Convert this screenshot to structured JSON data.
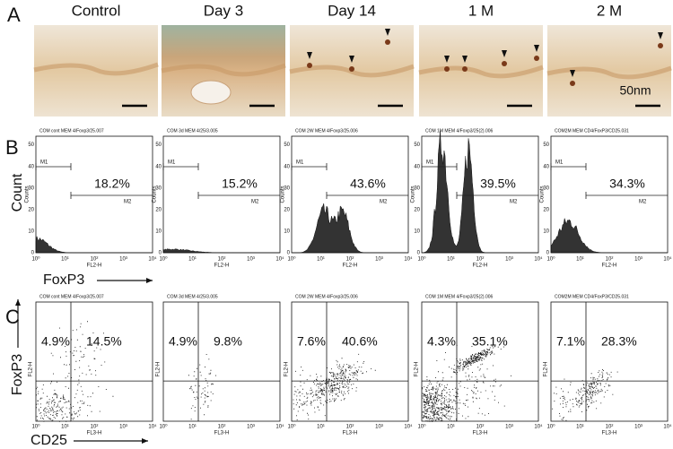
{
  "panel_a": {
    "label": "A",
    "columns": [
      "Control",
      "Day 3",
      "Day 14",
      "1 M",
      "2 M"
    ],
    "scale_label": "50nm"
  },
  "panel_b": {
    "label": "B",
    "y_axis_label": "Count",
    "x_axis_label": "FoxP3",
    "y_inner_label": "Counts",
    "x_inner_label": "FL2-H",
    "yticks": [
      "0",
      "10",
      "20",
      "30",
      "40",
      "50"
    ],
    "xticks": [
      "10⁰",
      "10¹",
      "10²",
      "10³",
      "10⁴"
    ],
    "plots": [
      {
        "header": "COM cont MEM 4/Foxp3/25.007",
        "gate1": "M1",
        "gate2": "M2",
        "percent": "18.2%"
      },
      {
        "header": "COM 3d MEM 4/25/3.005",
        "gate1": "M1",
        "gate2": "M2",
        "percent": "15.2%"
      },
      {
        "header": "COM 2W MEM 4/Foxp3/25.006",
        "gate1": "M1",
        "gate2": "M2",
        "percent": "43.6%"
      },
      {
        "header": "COM 1M MEM 4/Foxp3/25(2).006",
        "gate1": "M1",
        "gate2": "M2",
        "percent": "39.5%"
      },
      {
        "header": "COM2M MEM CD4/FoxP3/CD25.031",
        "gate1": "M1",
        "gate2": "M2",
        "percent": "34.3%"
      }
    ]
  },
  "panel_c": {
    "label": "C",
    "y_axis_label": "FoxP3",
    "x_axis_label": "CD25",
    "y_inner_label": "FL2-H",
    "x_inner_label": "FL3-H",
    "xticks": [
      "10⁰",
      "10¹",
      "10²",
      "10³",
      "10⁴"
    ],
    "plots": [
      {
        "header": "COM cont MEM 4/Foxp3/25.007",
        "upper_left": "4.9%",
        "upper_right": "14.5%"
      },
      {
        "header": "COM 3d MEM 4/25/3.005",
        "upper_left": "4.9%",
        "upper_right": "9.8%"
      },
      {
        "header": "COM 2W MEM 4/Foxp3/25.006",
        "upper_left": "7.6%",
        "upper_right": "40.6%"
      },
      {
        "header": "COM 1M MEM 4/Foxp3/25(2).006",
        "upper_left": "4.3%",
        "upper_right": "35.1%"
      },
      {
        "header": "COM2M MEM CD4/FoxP3/CD25.031",
        "upper_left": "7.1%",
        "upper_right": "28.3%"
      }
    ]
  }
}
